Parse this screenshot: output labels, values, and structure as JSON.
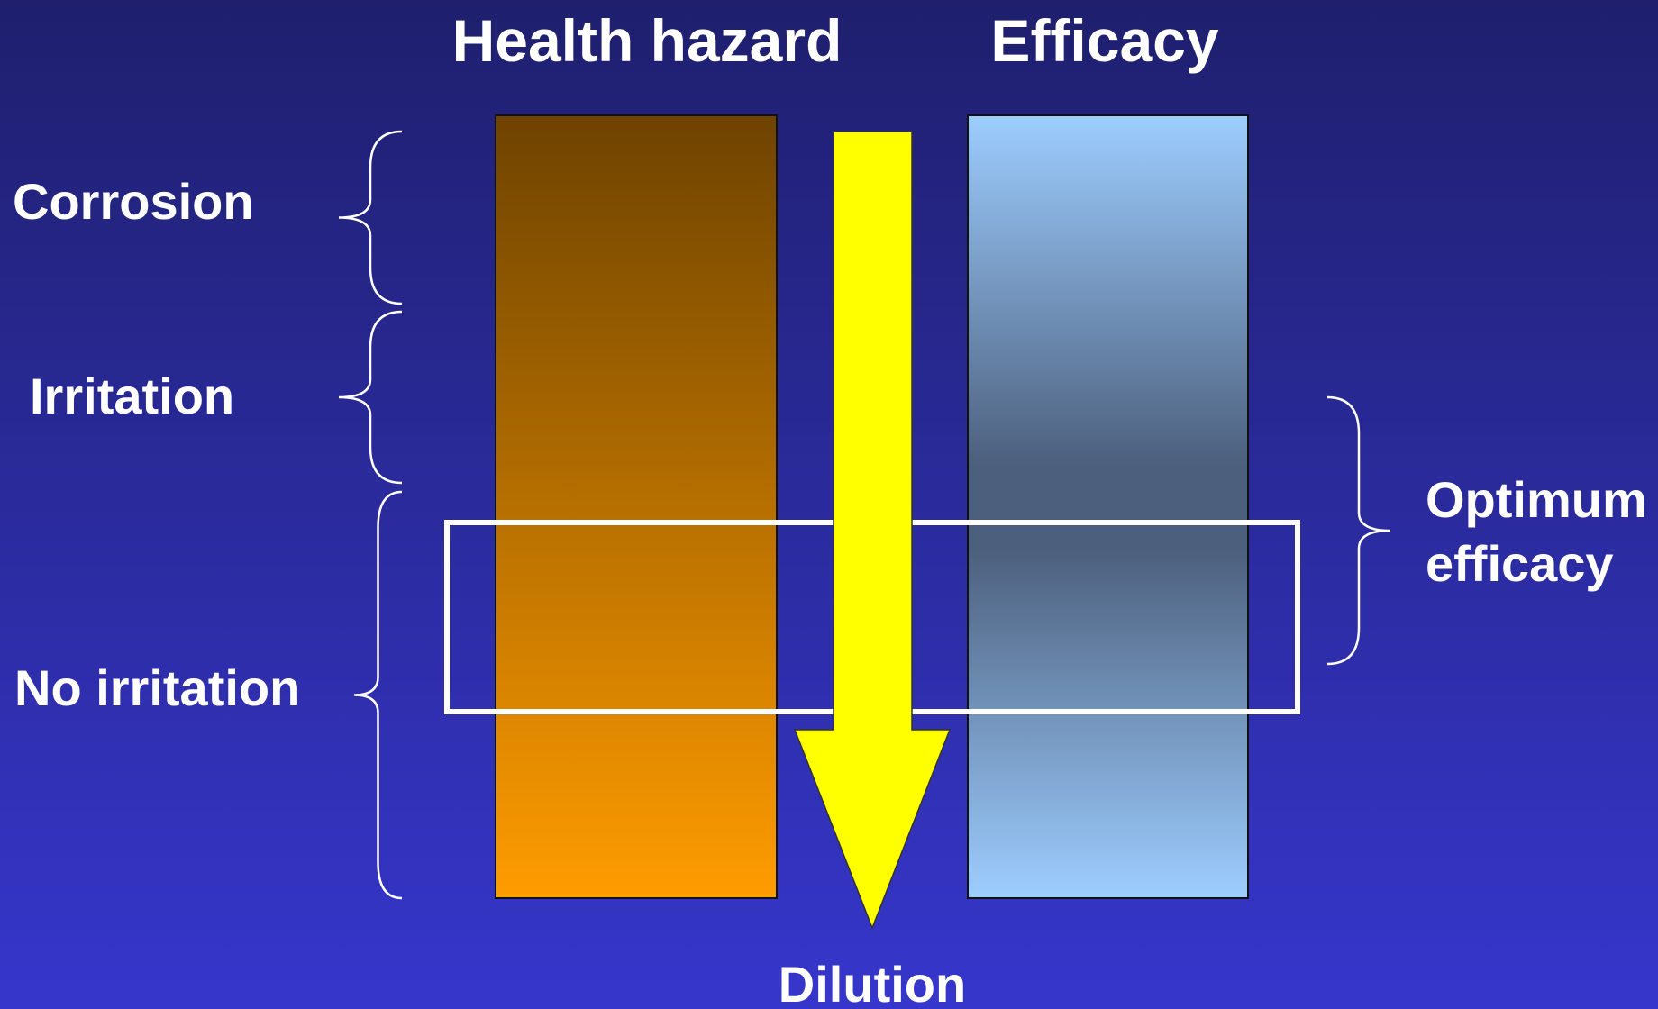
{
  "header": {
    "columns": [
      "Health hazard",
      "Efficacy"
    ]
  },
  "levels": [
    "Corrosion",
    "Irritation",
    "No irritation"
  ],
  "optimum": {
    "lines": [
      "Optimum",
      "efficacy"
    ]
  },
  "arrow_label": "Dilution"
}
